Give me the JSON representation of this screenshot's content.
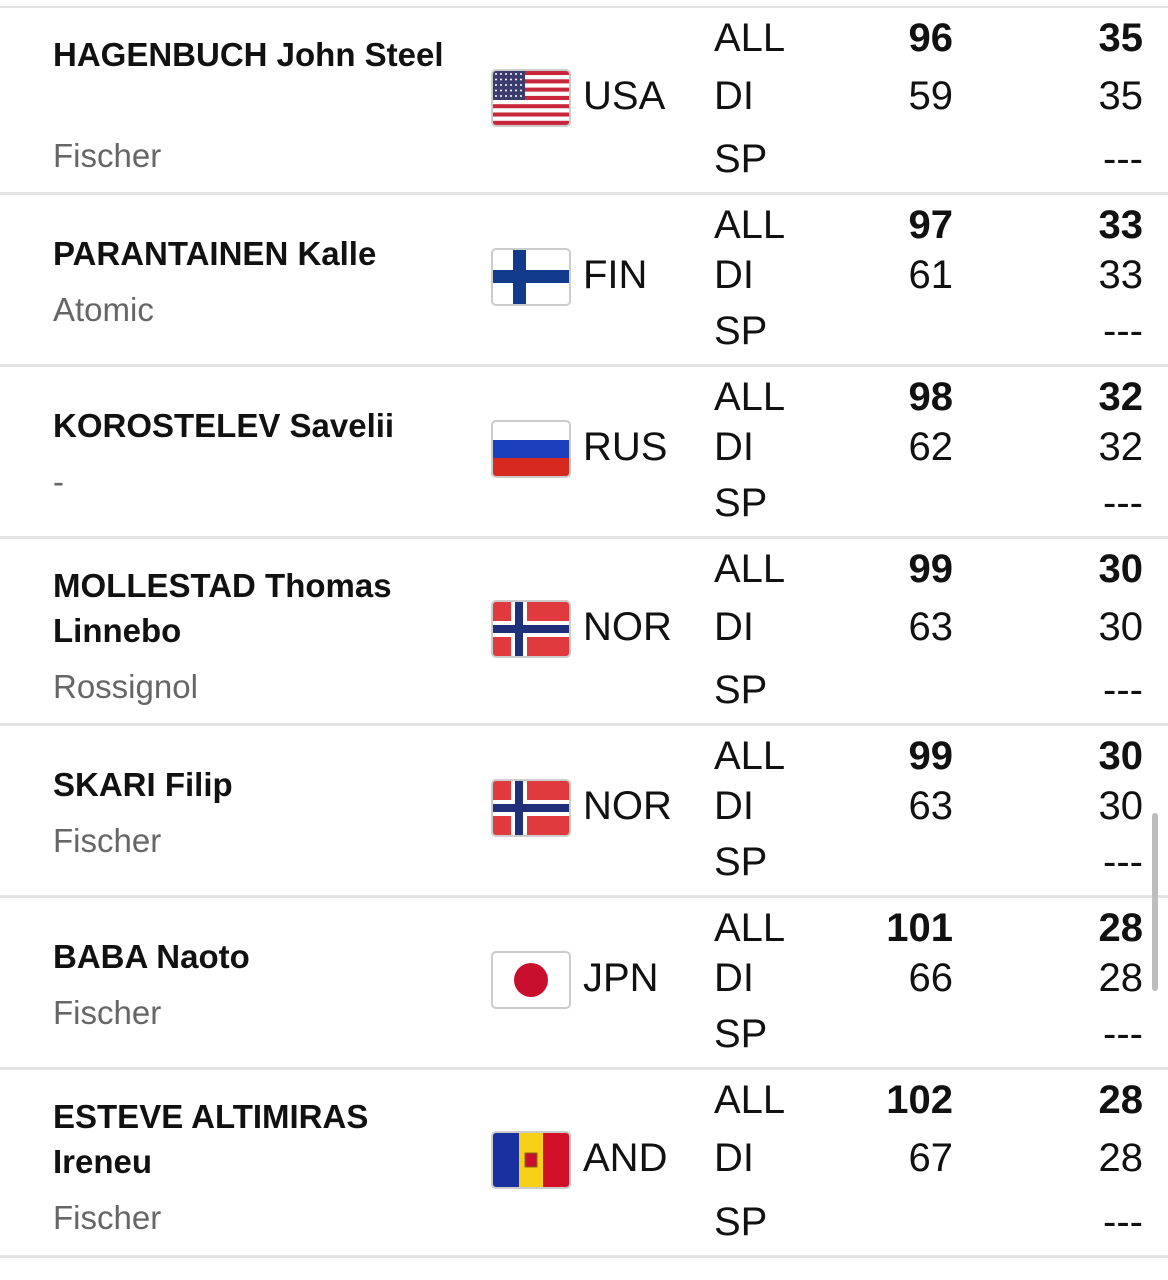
{
  "rows": [
    {
      "name": "HAGENBUCH John Steel",
      "brand": "Fischer",
      "country": "USA",
      "results": [
        {
          "label": "ALL",
          "rank": 96,
          "points": 35
        },
        {
          "label": "DI",
          "rank": 59,
          "points": 35
        },
        {
          "label": "SP",
          "points": "---"
        }
      ]
    },
    {
      "name": "PARANTAINEN Kalle",
      "brand": "Atomic",
      "country": "FIN",
      "results": [
        {
          "label": "ALL",
          "rank": 97,
          "points": 33
        },
        {
          "label": "DI",
          "rank": 61,
          "points": 33
        },
        {
          "label": "SP",
          "points": "---"
        }
      ]
    },
    {
      "name": "KOROSTELEV Savelii",
      "brand": "-",
      "country": "RUS",
      "results": [
        {
          "label": "ALL",
          "rank": 98,
          "points": 32
        },
        {
          "label": "DI",
          "rank": 62,
          "points": 32
        },
        {
          "label": "SP",
          "points": "---"
        }
      ]
    },
    {
      "name": "MOLLESTAD Thomas Linnebo",
      "brand": "Rossignol",
      "country": "NOR",
      "results": [
        {
          "label": "ALL",
          "rank": 99,
          "points": 30
        },
        {
          "label": "DI",
          "rank": 63,
          "points": 30
        },
        {
          "label": "SP",
          "points": "---"
        }
      ]
    },
    {
      "name": "SKARI Filip",
      "brand": "Fischer",
      "country": "NOR",
      "results": [
        {
          "label": "ALL",
          "rank": 99,
          "points": 30
        },
        {
          "label": "DI",
          "rank": 63,
          "points": 30
        },
        {
          "label": "SP",
          "points": "---"
        }
      ]
    },
    {
      "name": "BABA Naoto",
      "brand": "Fischer",
      "country": "JPN",
      "results": [
        {
          "label": "ALL",
          "rank": 101,
          "points": 28
        },
        {
          "label": "DI",
          "rank": 66,
          "points": 28
        },
        {
          "label": "SP",
          "points": "---"
        }
      ]
    },
    {
      "name": "ESTEVE ALTIMIRAS Ireneu",
      "brand": "Fischer",
      "country": "AND",
      "results": [
        {
          "label": "ALL",
          "rank": 102,
          "points": 28
        },
        {
          "label": "DI",
          "rank": 67,
          "points": 28
        },
        {
          "label": "SP",
          "points": "---"
        }
      ]
    }
  ]
}
